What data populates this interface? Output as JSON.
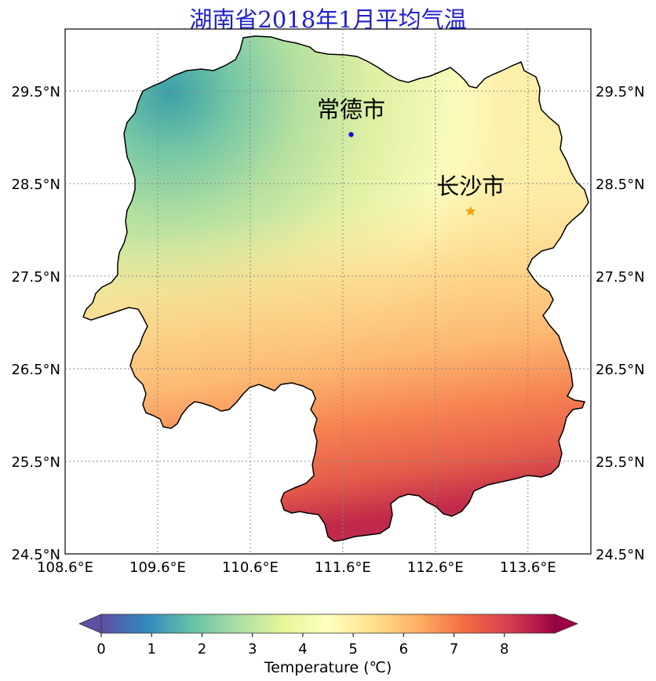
{
  "title": "湖南省2018年1月平均气温",
  "map": {
    "lon_ticks": [
      "108.6°E",
      "109.6°E",
      "110.6°E",
      "111.6°E",
      "112.6°E",
      "113.6°E"
    ],
    "lat_ticks": [
      "29.5°N",
      "28.5°N",
      "27.5°N",
      "26.5°N",
      "25.5°N",
      "24.5°N"
    ],
    "lon_range": [
      108.6,
      114.28
    ],
    "lat_range": [
      24.5,
      30.17
    ],
    "grid": "dotted",
    "cities": [
      {
        "name": "常德市",
        "lon": 111.69,
        "lat": 29.03,
        "marker": "dot",
        "color": "#1010dd"
      },
      {
        "name": "长沙市",
        "lon": 112.98,
        "lat": 28.2,
        "marker": "star",
        "color": "#f5a010"
      }
    ]
  },
  "colorbar": {
    "label": "Temperature (℃)",
    "ticks": [
      "0",
      "1",
      "2",
      "3",
      "4",
      "5",
      "6",
      "7",
      "8"
    ],
    "range": [
      0,
      9
    ],
    "colormap": "Spectral_r",
    "extend": "both"
  },
  "field_notes": {
    "cold_region": "northwest",
    "warm_region": "south",
    "min_value_approx": 2.0,
    "max_value_approx": 8.0
  }
}
